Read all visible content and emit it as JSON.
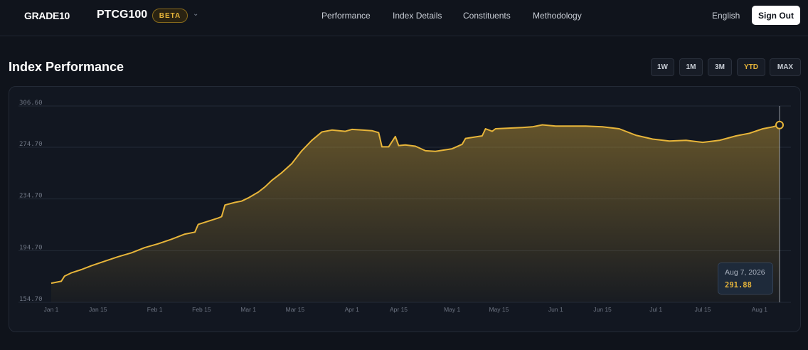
{
  "header": {
    "logo_text": "GRADE10",
    "brand": "PTCG100",
    "badge": "BETA",
    "nav": [
      "Performance",
      "Index Details",
      "Constituents",
      "Methodology"
    ],
    "language": "English",
    "sign_out": "Sign Out"
  },
  "page": {
    "title": "Index Performance",
    "ranges": [
      "1W",
      "1M",
      "3M",
      "YTD",
      "MAX"
    ],
    "active_range": "YTD"
  },
  "tooltip": {
    "date": "Aug 7, 2026",
    "value": "291.88"
  },
  "colors": {
    "accent": "#e7b53a",
    "background": "#0f131b"
  },
  "chart_data": {
    "type": "area",
    "title": "",
    "xlabel": "",
    "ylabel": "",
    "y_ticks": [
      "154.70",
      "194.70",
      "234.70",
      "274.70",
      "306.60"
    ],
    "ylim": [
      154.7,
      306.6
    ],
    "x_ticks": [
      "Jan 1",
      "Jan 15",
      "Feb 1",
      "Feb 15",
      "Mar 1",
      "Mar 15",
      "Apr 1",
      "Apr 15",
      "May 1",
      "May 15",
      "Jun 1",
      "Jun 15",
      "Jul 1",
      "Jul 15",
      "Aug 1"
    ],
    "x_tick_dates": [
      "2026-01-01",
      "2026-01-15",
      "2026-02-01",
      "2026-02-15",
      "2026-03-01",
      "2026-03-15",
      "2026-04-01",
      "2026-04-15",
      "2026-05-01",
      "2026-05-15",
      "2026-06-01",
      "2026-06-15",
      "2026-07-01",
      "2026-07-15",
      "2026-08-01"
    ],
    "grid": true,
    "series": [
      {
        "x": [
          "2026-01-01",
          "2026-01-04",
          "2026-01-05",
          "2026-01-07",
          "2026-01-10",
          "2026-01-13",
          "2026-01-17",
          "2026-01-21",
          "2026-01-25",
          "2026-01-29",
          "2026-02-02",
          "2026-02-06",
          "2026-02-10",
          "2026-02-13",
          "2026-02-14",
          "2026-02-17",
          "2026-02-20",
          "2026-02-21",
          "2026-02-22",
          "2026-02-25",
          "2026-02-27",
          "2026-03-01",
          "2026-03-04",
          "2026-03-06",
          "2026-03-08",
          "2026-03-11",
          "2026-03-14",
          "2026-03-17",
          "2026-03-20",
          "2026-03-23",
          "2026-03-26",
          "2026-03-30",
          "2026-04-01",
          "2026-04-04",
          "2026-04-07",
          "2026-04-09",
          "2026-04-10",
          "2026-04-12",
          "2026-04-14",
          "2026-04-15",
          "2026-04-17",
          "2026-04-20",
          "2026-04-23",
          "2026-04-26",
          "2026-05-01",
          "2026-05-04",
          "2026-05-05",
          "2026-05-10",
          "2026-05-11",
          "2026-05-13",
          "2026-05-14",
          "2026-05-18",
          "2026-05-22",
          "2026-05-25",
          "2026-05-28",
          "2026-06-01",
          "2026-06-05",
          "2026-06-10",
          "2026-06-15",
          "2026-06-20",
          "2026-06-25",
          "2026-06-30",
          "2026-07-05",
          "2026-07-10",
          "2026-07-15",
          "2026-07-20",
          "2026-07-25",
          "2026-07-29",
          "2026-08-02",
          "2026-08-05",
          "2026-08-07"
        ],
        "values": [
          169.5,
          171.0,
          175.0,
          177.5,
          180.0,
          183.0,
          186.5,
          190.0,
          193.0,
          197.0,
          200.0,
          203.5,
          207.5,
          209.0,
          215.0,
          217.5,
          220.0,
          221.0,
          230.0,
          232.0,
          233.0,
          235.5,
          240.0,
          244.0,
          249.0,
          255.0,
          262.0,
          272.0,
          280.0,
          286.5,
          288.0,
          287.0,
          288.5,
          288.0,
          287.5,
          286.0,
          275.0,
          275.0,
          283.0,
          276.0,
          276.5,
          275.5,
          272.0,
          271.5,
          273.5,
          277.0,
          281.5,
          283.5,
          289.0,
          287.0,
          289.0,
          289.5,
          290.0,
          290.5,
          292.0,
          291.0,
          291.0,
          291.0,
          290.5,
          289.0,
          284.0,
          281.0,
          279.5,
          280.0,
          278.5,
          280.0,
          283.5,
          285.5,
          289.0,
          290.5,
          291.88
        ]
      }
    ],
    "last_point": {
      "x": "2026-08-07",
      "value": 291.88
    }
  }
}
